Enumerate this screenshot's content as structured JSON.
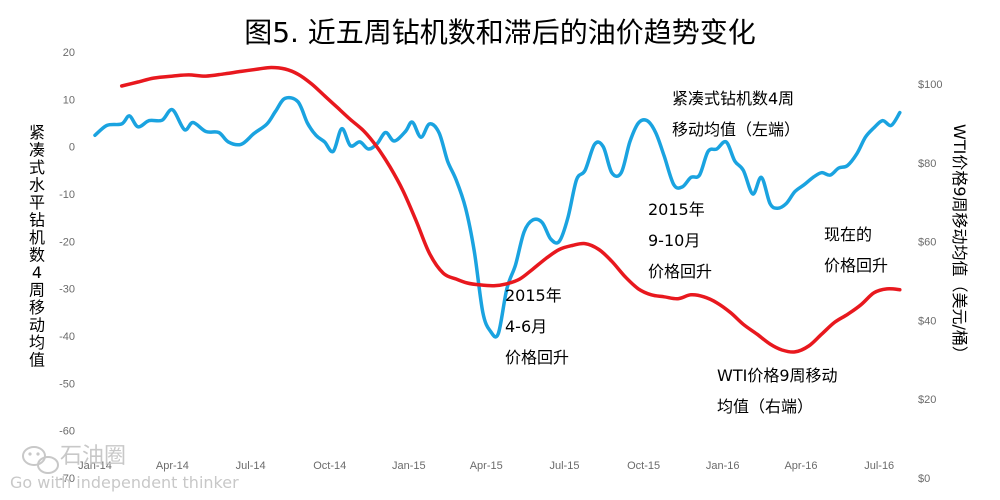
{
  "chart_data": {
    "type": "line",
    "title": "图5. 近五周钻机数和滞后的油价趋势变化",
    "y_left": {
      "label": "紧凑式水平钻机数4周移动均值",
      "range": [
        -70,
        20
      ],
      "ticks": [
        "20",
        "10",
        "0",
        "-10",
        "-20",
        "-30",
        "-40",
        "-50",
        "-60",
        "-70"
      ]
    },
    "y_right": {
      "label": "WTI价格9周移动均值（美元/桶）",
      "range": [
        0,
        100
      ],
      "ticks": [
        "$100",
        "$80",
        "$60",
        "$40",
        "$20",
        "$0"
      ]
    },
    "x": {
      "range": [
        "2014-01-01",
        "2016-07-31"
      ],
      "ticks": [
        {
          "label": "Jan-14",
          "date": "2014-01-01"
        },
        {
          "label": "Apr-14",
          "date": "2014-04-01"
        },
        {
          "label": "Jul-14",
          "date": "2014-07-01"
        },
        {
          "label": "Oct-14",
          "date": "2014-10-01"
        },
        {
          "label": "Jan-15",
          "date": "2015-01-01"
        },
        {
          "label": "Apr-15",
          "date": "2015-04-01"
        },
        {
          "label": "Jul-15",
          "date": "2015-07-01"
        },
        {
          "label": "Oct-15",
          "date": "2015-10-01"
        },
        {
          "label": "Jan-16",
          "date": "2016-01-01"
        },
        {
          "label": "Apr-16",
          "date": "2016-04-01"
        },
        {
          "label": "Jul-16",
          "date": "2016-07-01"
        }
      ]
    },
    "grid": false,
    "legend": "none",
    "series": [
      {
        "axis": "left",
        "color": "#1aa3e0",
        "points": [
          [
            "2014-01-01",
            2.4
          ],
          [
            "2014-01-15",
            4.5
          ],
          [
            "2014-02-01",
            4.8
          ],
          [
            "2014-02-10",
            6.5
          ],
          [
            "2014-02-20",
            4.2
          ],
          [
            "2014-03-05",
            5.5
          ],
          [
            "2014-03-20",
            5.6
          ],
          [
            "2014-04-01",
            7.8
          ],
          [
            "2014-04-15",
            3.6
          ],
          [
            "2014-04-25",
            5.1
          ],
          [
            "2014-05-10",
            3.2
          ],
          [
            "2014-05-25",
            3.0
          ],
          [
            "2014-06-05",
            1.0
          ],
          [
            "2014-06-20",
            0.5
          ],
          [
            "2014-07-05",
            2.8
          ],
          [
            "2014-07-20",
            4.8
          ],
          [
            "2014-07-30",
            7.5
          ],
          [
            "2014-08-10",
            10.2
          ],
          [
            "2014-08-25",
            9.5
          ],
          [
            "2014-09-05",
            5.0
          ],
          [
            "2014-09-15",
            2.4
          ],
          [
            "2014-09-25",
            1.0
          ],
          [
            "2014-10-05",
            -1.0
          ],
          [
            "2014-10-15",
            3.8
          ],
          [
            "2014-10-25",
            0.2
          ],
          [
            "2014-11-05",
            1.0
          ],
          [
            "2014-11-15",
            -0.5
          ],
          [
            "2014-11-25",
            0.6
          ],
          [
            "2014-12-05",
            3.0
          ],
          [
            "2014-12-15",
            1.2
          ],
          [
            "2014-12-28",
            3.2
          ],
          [
            "2015-01-05",
            5.2
          ],
          [
            "2015-01-15",
            2.0
          ],
          [
            "2015-01-25",
            4.8
          ],
          [
            "2015-02-05",
            3.0
          ],
          [
            "2015-02-15",
            -3.0
          ],
          [
            "2015-02-25",
            -7.0
          ],
          [
            "2015-03-08",
            -13.0
          ],
          [
            "2015-03-18",
            -22.0
          ],
          [
            "2015-03-28",
            -35.0
          ],
          [
            "2015-04-06",
            -39.0
          ],
          [
            "2015-04-15",
            -39.5
          ],
          [
            "2015-04-25",
            -30.0
          ],
          [
            "2015-05-05",
            -25.0
          ],
          [
            "2015-05-15",
            -18.0
          ],
          [
            "2015-05-25",
            -15.5
          ],
          [
            "2015-06-05",
            -16.0
          ],
          [
            "2015-06-15",
            -19.5
          ],
          [
            "2015-06-25",
            -20.0
          ],
          [
            "2015-07-05",
            -15.0
          ],
          [
            "2015-07-15",
            -7.0
          ],
          [
            "2015-07-25",
            -5.0
          ],
          [
            "2015-08-05",
            0.5
          ],
          [
            "2015-08-15",
            0.0
          ],
          [
            "2015-08-25",
            -5.5
          ],
          [
            "2015-09-05",
            -5.5
          ],
          [
            "2015-09-15",
            1.0
          ],
          [
            "2015-09-25",
            5.0
          ],
          [
            "2015-10-05",
            5.5
          ],
          [
            "2015-10-15",
            3.0
          ],
          [
            "2015-10-25",
            -2.0
          ],
          [
            "2015-11-05",
            -8.0
          ],
          [
            "2015-11-15",
            -8.5
          ],
          [
            "2015-11-25",
            -6.5
          ],
          [
            "2015-12-05",
            -6.0
          ],
          [
            "2015-12-15",
            -1.0
          ],
          [
            "2015-12-25",
            -0.5
          ],
          [
            "2016-01-05",
            1.0
          ],
          [
            "2016-01-15",
            -3.0
          ],
          [
            "2016-01-25",
            -5.0
          ],
          [
            "2016-02-05",
            -10.0
          ],
          [
            "2016-02-15",
            -6.5
          ],
          [
            "2016-02-25",
            -12.0
          ],
          [
            "2016-03-05",
            -13.0
          ],
          [
            "2016-03-15",
            -12.0
          ],
          [
            "2016-03-25",
            -9.5
          ],
          [
            "2016-04-05",
            -8.0
          ],
          [
            "2016-04-15",
            -6.5
          ],
          [
            "2016-04-25",
            -5.5
          ],
          [
            "2016-05-05",
            -6.0
          ],
          [
            "2016-05-15",
            -4.5
          ],
          [
            "2016-05-25",
            -4.0
          ],
          [
            "2016-06-05",
            -1.5
          ],
          [
            "2016-06-15",
            2.0
          ],
          [
            "2016-06-25",
            4.0
          ],
          [
            "2016-07-05",
            5.5
          ],
          [
            "2016-07-15",
            4.5
          ],
          [
            "2016-07-25",
            7.2
          ]
        ]
      },
      {
        "axis": "right",
        "color": "#e8181e",
        "points": [
          [
            "2014-02-01",
            99.5
          ],
          [
            "2014-02-20",
            100.5
          ],
          [
            "2014-03-10",
            101.5
          ],
          [
            "2014-04-01",
            102.0
          ],
          [
            "2014-04-20",
            102.3
          ],
          [
            "2014-05-10",
            102.0
          ],
          [
            "2014-06-01",
            102.6
          ],
          [
            "2014-06-20",
            103.2
          ],
          [
            "2014-07-10",
            103.8
          ],
          [
            "2014-07-25",
            104.2
          ],
          [
            "2014-08-10",
            103.8
          ],
          [
            "2014-08-25",
            102.5
          ],
          [
            "2014-09-10",
            100.0
          ],
          [
            "2014-09-25",
            97.0
          ],
          [
            "2014-10-10",
            94.0
          ],
          [
            "2014-10-25",
            91.0
          ],
          [
            "2014-11-10",
            88.0
          ],
          [
            "2014-11-25",
            84.0
          ],
          [
            "2014-12-10",
            79.0
          ],
          [
            "2014-12-25",
            73.0
          ],
          [
            "2015-01-10",
            65.0
          ],
          [
            "2015-01-25",
            57.0
          ],
          [
            "2015-02-10",
            52.0
          ],
          [
            "2015-02-25",
            50.5
          ],
          [
            "2015-03-10",
            49.5
          ],
          [
            "2015-03-25",
            49.0
          ],
          [
            "2015-04-10",
            48.8
          ],
          [
            "2015-04-25",
            49.3
          ],
          [
            "2015-05-10",
            50.5
          ],
          [
            "2015-05-25",
            53.0
          ],
          [
            "2015-06-10",
            55.8
          ],
          [
            "2015-06-25",
            58.0
          ],
          [
            "2015-07-10",
            59.0
          ],
          [
            "2015-07-25",
            59.5
          ],
          [
            "2015-08-10",
            58.0
          ],
          [
            "2015-08-25",
            55.0
          ],
          [
            "2015-09-10",
            51.0
          ],
          [
            "2015-09-25",
            48.0
          ],
          [
            "2015-10-10",
            46.5
          ],
          [
            "2015-10-25",
            46.0
          ],
          [
            "2015-11-10",
            45.5
          ],
          [
            "2015-11-25",
            46.5
          ],
          [
            "2015-12-10",
            46.0
          ],
          [
            "2015-12-25",
            44.5
          ],
          [
            "2016-01-10",
            42.0
          ],
          [
            "2016-01-25",
            39.0
          ],
          [
            "2016-02-10",
            36.5
          ],
          [
            "2016-02-25",
            34.0
          ],
          [
            "2016-03-10",
            32.5
          ],
          [
            "2016-03-25",
            32.0
          ],
          [
            "2016-04-10",
            33.5
          ],
          [
            "2016-04-25",
            36.5
          ],
          [
            "2016-05-10",
            39.5
          ],
          [
            "2016-05-25",
            41.5
          ],
          [
            "2016-06-10",
            44.0
          ],
          [
            "2016-06-25",
            47.0
          ],
          [
            "2016-07-10",
            48.0
          ],
          [
            "2016-07-25",
            47.8
          ]
        ]
      }
    ],
    "annotations": [
      {
        "lines": [
          "紧凑式钻机数4周",
          "移动均值（左端）"
        ]
      },
      {
        "lines": [
          "2015年",
          "9-10月",
          "价格回升"
        ]
      },
      {
        "lines": [
          "现在的",
          "价格回升"
        ]
      },
      {
        "lines": [
          "2015年",
          "4-6月",
          "价格回升"
        ]
      },
      {
        "lines": [
          "WTI价格9周移动",
          "均值（右端）"
        ]
      }
    ]
  },
  "watermark": {
    "icon": "wechat-icon",
    "name": "石油圈",
    "slogan": "Go with independent thinker"
  }
}
